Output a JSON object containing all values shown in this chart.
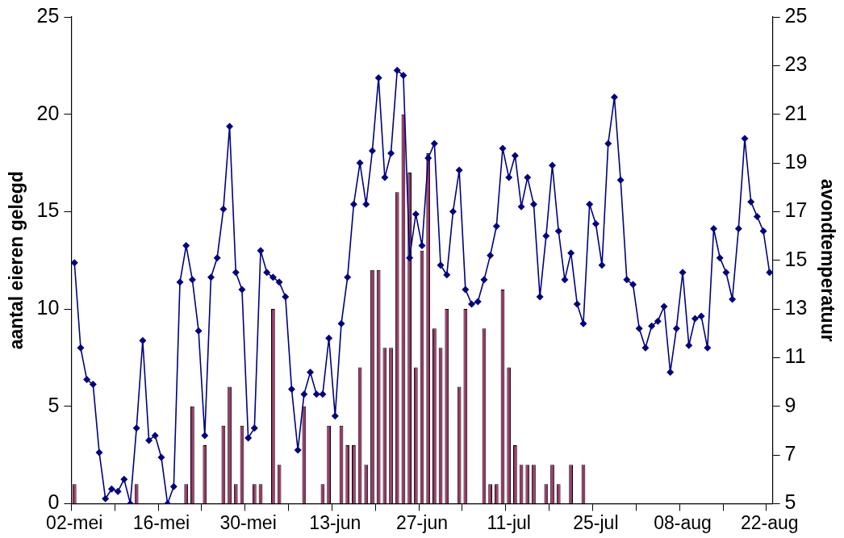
{
  "chart_data": {
    "type": "bar",
    "categories": [
      "02-mei",
      null,
      null,
      null,
      null,
      null,
      null,
      null,
      null,
      null,
      null,
      null,
      null,
      null,
      "16-mei",
      null,
      null,
      null,
      null,
      null,
      null,
      null,
      null,
      null,
      null,
      null,
      null,
      null,
      "30-mei",
      null,
      null,
      null,
      null,
      null,
      null,
      null,
      null,
      null,
      null,
      null,
      null,
      null,
      "13-jun",
      null,
      null,
      null,
      null,
      null,
      null,
      null,
      null,
      null,
      null,
      null,
      null,
      null,
      "27-jun",
      null,
      null,
      null,
      null,
      null,
      null,
      null,
      null,
      null,
      null,
      null,
      null,
      null,
      "11-jul",
      null,
      null,
      null,
      null,
      null,
      null,
      null,
      null,
      null,
      null,
      null,
      null,
      null,
      "25-jul",
      null,
      null,
      null,
      null,
      null,
      null,
      null,
      null,
      null,
      null,
      null,
      null,
      null,
      "08-aug",
      null,
      null,
      null,
      null,
      null,
      null,
      null,
      null,
      null,
      null,
      null,
      null,
      null,
      "22-aug"
    ],
    "ylabel": "aantal eieren gelegd",
    "y2label": "avondtemperatuur",
    "ylim": [
      0,
      25
    ],
    "yticks": [
      0,
      5,
      10,
      15,
      20,
      25
    ],
    "y2lim": [
      5,
      25
    ],
    "y2ticks": [
      5,
      7,
      9,
      11,
      13,
      15,
      17,
      19,
      21,
      23,
      25
    ],
    "legend": false,
    "marker": "diamond",
    "series": [
      {
        "color": "#993366",
        "values": [
          1,
          0,
          0,
          0,
          0,
          0,
          0,
          0,
          0,
          0,
          1,
          0,
          0,
          0,
          0,
          0,
          0,
          0,
          1,
          5,
          0,
          3,
          0,
          0,
          4,
          6,
          1,
          4,
          0,
          1,
          1,
          0,
          10,
          2,
          0,
          0,
          0,
          5,
          0,
          0,
          1,
          4,
          0,
          4,
          3,
          3,
          7,
          2,
          12,
          12,
          8,
          8,
          16,
          20,
          17,
          7,
          13,
          18,
          9,
          8,
          10,
          0,
          6,
          10,
          0,
          0,
          9,
          1,
          1,
          11,
          7,
          3,
          2,
          2,
          2,
          0,
          1,
          2,
          1,
          0,
          2,
          0,
          2,
          0,
          0,
          0,
          0,
          0,
          0,
          0,
          0,
          0,
          0,
          0,
          0,
          0,
          0,
          0,
          0,
          0,
          0,
          0,
          0,
          0,
          0,
          0,
          0,
          0,
          0,
          0,
          0,
          0,
          0
        ]
      },
      {
        "type": "line",
        "axis": "y2",
        "color": "#000080",
        "values": [
          14.9,
          11.4,
          10.1,
          9.9,
          7.1,
          5.2,
          5.6,
          5.5,
          6.0,
          5,
          8.1,
          11.7,
          7.6,
          7.8,
          6.9,
          5,
          5.7,
          14.1,
          15.6,
          14.2,
          12.1,
          7.8,
          14.3,
          15.1,
          17.1,
          20.5,
          14.5,
          13.8,
          7.7,
          8.1,
          15.4,
          14.5,
          14.3,
          14.1,
          13.5,
          9.7,
          7.2,
          9.5,
          10.4,
          9.5,
          9.5,
          11.8,
          8.6,
          12.4,
          14.3,
          17.3,
          19.0,
          17.3,
          19.5,
          22.5,
          18.4,
          19.4,
          22.8,
          22.6,
          15.1,
          16.9,
          15.6,
          19.2,
          19.8,
          14.8,
          14.4,
          17.0,
          18.7,
          13.8,
          13.2,
          13.3,
          14.2,
          15.2,
          16.4,
          19.6,
          18.4,
          19.3,
          17.2,
          18.4,
          17.3,
          13.5,
          16.0,
          18.9,
          16.2,
          14.2,
          15.3,
          13.2,
          12.4,
          17.3,
          16.5,
          14.8,
          19.8,
          21.7,
          18.3,
          14.2,
          14.0,
          12.2,
          11.4,
          12.3,
          12.5,
          13.1,
          10.4,
          12.2,
          14.5,
          11.5,
          12.6,
          12.7,
          11.4,
          16.3,
          15.1,
          14.5,
          13.4,
          16.3,
          20.0,
          17.4,
          16.8,
          16.2,
          14.5
        ]
      }
    ]
  }
}
